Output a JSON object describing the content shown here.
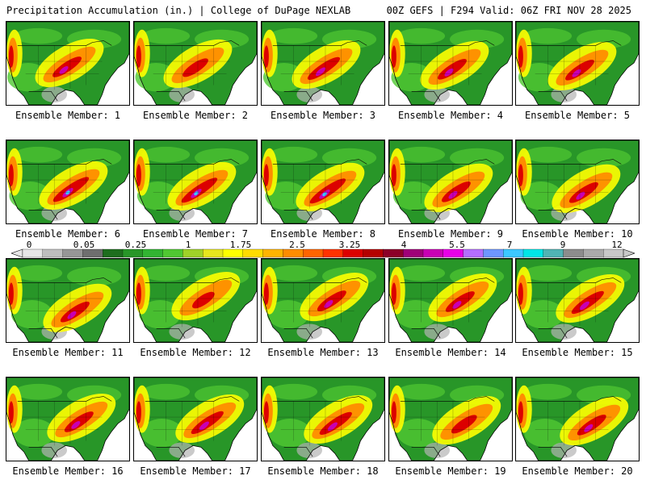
{
  "header": {
    "left_title": "Precipitation Accumulation (in.) | College of DuPage NEXLAB",
    "right_title": "00Z GEFS | F294 Valid: 06Z FRI NOV 28 2025"
  },
  "members": [
    {
      "label": "Ensemble Member: 1",
      "intensity": 0.6
    },
    {
      "label": "Ensemble Member: 2",
      "intensity": 0.5
    },
    {
      "label": "Ensemble Member: 3",
      "intensity": 0.7
    },
    {
      "label": "Ensemble Member: 4",
      "intensity": 0.6
    },
    {
      "label": "Ensemble Member: 5",
      "intensity": 0.6
    },
    {
      "label": "Ensemble Member: 6",
      "intensity": 0.8
    },
    {
      "label": "Ensemble Member: 7",
      "intensity": 0.8
    },
    {
      "label": "Ensemble Member: 8",
      "intensity": 0.8
    },
    {
      "label": "Ensemble Member: 9",
      "intensity": 0.6
    },
    {
      "label": "Ensemble Member: 10",
      "intensity": 0.6
    },
    {
      "label": "Ensemble Member: 11",
      "intensity": 0.6
    },
    {
      "label": "Ensemble Member: 12",
      "intensity": 0.4
    },
    {
      "label": "Ensemble Member: 13",
      "intensity": 0.6
    },
    {
      "label": "Ensemble Member: 14",
      "intensity": 0.6
    },
    {
      "label": "Ensemble Member: 15",
      "intensity": 0.7
    },
    {
      "label": "Ensemble Member: 16",
      "intensity": 0.6
    },
    {
      "label": "Ensemble Member: 17",
      "intensity": 0.7
    },
    {
      "label": "Ensemble Member: 18",
      "intensity": 0.7
    },
    {
      "label": "Ensemble Member: 19",
      "intensity": 0.5
    },
    {
      "label": "Ensemble Member: 20",
      "intensity": 0.6
    }
  ],
  "colorbar": {
    "labels": [
      "0",
      "0.05",
      "0.25",
      "1",
      "1.75",
      "2.5",
      "3.25",
      "4",
      "5.5",
      "7",
      "9",
      "12"
    ],
    "colors": [
      "#e6e6e6",
      "#bebebe",
      "#969696",
      "#6e6e6e",
      "#1e6e1e",
      "#289628",
      "#32b432",
      "#50c832",
      "#a0d228",
      "#e6e61e",
      "#ffff00",
      "#ffdc00",
      "#ffb400",
      "#ff8c00",
      "#ff6400",
      "#ff3200",
      "#dc0000",
      "#b40000",
      "#8c0028",
      "#a00078",
      "#c800b4",
      "#e600e6",
      "#b46eff",
      "#6e96ff",
      "#3cc8ff",
      "#00e6e6",
      "#50b4b4",
      "#8c8c8c",
      "#aaaaaa",
      "#c8c8c8"
    ]
  },
  "colors": {
    "ocean": "#ffffff",
    "land_base": "#289628",
    "light_green": "#50c832",
    "yellow": "#ffff00",
    "orange": "#ff8c00",
    "red": "#dc0000",
    "magenta": "#c800b4",
    "cyan": "#3cc8ff",
    "gray": "#b4b4b4"
  }
}
